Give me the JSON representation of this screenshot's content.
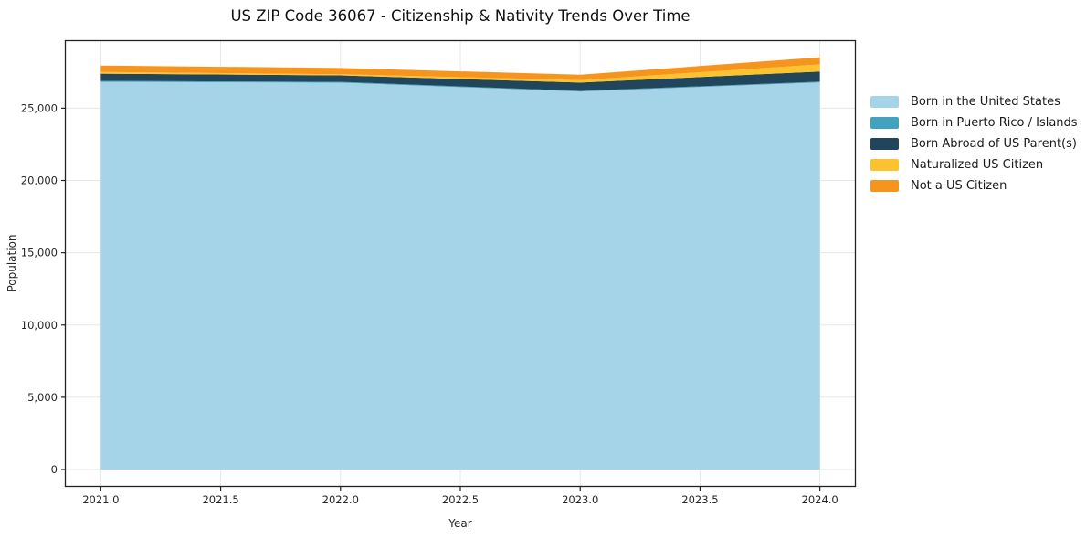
{
  "chart_data": {
    "type": "area",
    "stacked": true,
    "title": "US ZIP Code 36067 - Citizenship & Nativity Trends Over Time",
    "xlabel": "Year",
    "ylabel": "Population",
    "x": [
      2021,
      2022,
      2023,
      2024
    ],
    "series": [
      {
        "name": "Born in the United States",
        "color": "#a5d4e8",
        "values": [
          26820,
          26760,
          26140,
          26780
        ]
      },
      {
        "name": "Born in Puerto Rico / Islands",
        "color": "#41a3be",
        "values": [
          70,
          60,
          50,
          60
        ]
      },
      {
        "name": "Born Abroad of US Parent(s)",
        "color": "#21455a",
        "values": [
          500,
          450,
          580,
          690
        ]
      },
      {
        "name": "Naturalized US Citizen",
        "color": "#fdc32e",
        "values": [
          120,
          80,
          170,
          500
        ]
      },
      {
        "name": "Not a US Citizen",
        "color": "#f7941e",
        "values": [
          440,
          430,
          380,
          490
        ]
      }
    ],
    "xlim": [
      2020.85,
      2024.15
    ],
    "ylim": [
      -1200,
      29700
    ],
    "x_tick_values": [
      2021.0,
      2021.5,
      2022.0,
      2022.5,
      2023.0,
      2023.5,
      2024.0
    ],
    "x_tick_labels": [
      "2021.0",
      "2021.5",
      "2022.0",
      "2022.5",
      "2023.0",
      "2023.5",
      "2024.0"
    ],
    "y_tick_values": [
      0,
      5000,
      10000,
      15000,
      20000,
      25000
    ],
    "y_tick_labels": [
      "0",
      "5,000",
      "10,000",
      "15,000",
      "20,000",
      "25,000"
    ],
    "grid": true,
    "legend_position": "right"
  },
  "colors": {
    "spine": "#222222",
    "grid": "#e7e7e7",
    "tick_text": "#262626"
  }
}
